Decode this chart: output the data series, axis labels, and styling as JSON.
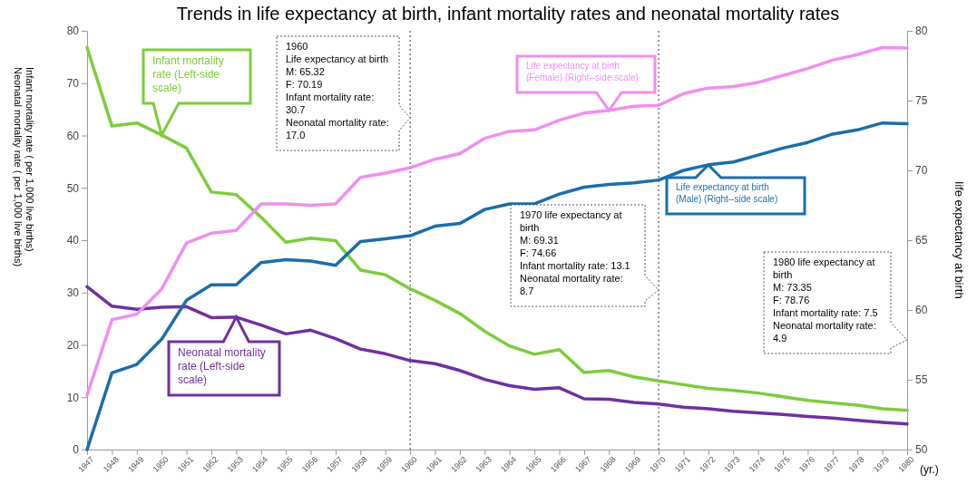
{
  "chart_data": {
    "type": "line",
    "title": "Trends in life expectancy at birth, infant mortality rates and neonatal mortality rates",
    "xlabel": "(yr.)",
    "ylabel": "Infant mortality rate ( per 1,000 live births)\nNeonatal mortality rate ( per 1,000 live births)",
    "y2label": "life expectancy at birth",
    "x": [
      1947,
      1948,
      1949,
      1950,
      1951,
      1952,
      1953,
      1954,
      1955,
      1956,
      1957,
      1958,
      1959,
      1960,
      1961,
      1962,
      1963,
      1964,
      1965,
      1966,
      1967,
      1968,
      1969,
      1970,
      1971,
      1972,
      1973,
      1974,
      1975,
      1976,
      1977,
      1978,
      1979,
      1980
    ],
    "xlim": [
      1947,
      1980
    ],
    "xticks": [
      1947,
      1948,
      1949,
      1950,
      1951,
      1952,
      1953,
      1954,
      1955,
      1956,
      1957,
      1958,
      1959,
      1960,
      1961,
      1962,
      1963,
      1964,
      1965,
      1966,
      1967,
      1968,
      1969,
      1970,
      1971,
      1972,
      1973,
      1974,
      1975,
      1976,
      1977,
      1978,
      1979,
      1980
    ],
    "ylim": [
      0,
      80
    ],
    "yticks": [
      0,
      10,
      20,
      30,
      40,
      50,
      60,
      70,
      80
    ],
    "y2lim": [
      50,
      80
    ],
    "y2ticks": [
      50,
      55,
      60,
      65,
      70,
      75,
      80
    ],
    "series": [
      {
        "name": "Infant mortality rate (Left-side scale)",
        "color": "#7dcc3c",
        "values": [
          76.8,
          61.8,
          62.4,
          60.1,
          57.6,
          49.2,
          48.7,
          44.4,
          39.6,
          40.4,
          39.9,
          34.3,
          33.4,
          30.7,
          28.5,
          26.0,
          22.6,
          19.8,
          18.2,
          19.1,
          14.7,
          15.1,
          13.9,
          13.1,
          12.4,
          11.7,
          11.3,
          10.8,
          10.1,
          9.4,
          8.9,
          8.5,
          7.8,
          7.5
        ]
      },
      {
        "name": "Neonatal mortality rate (Left-side scale)",
        "color": "#7030a0",
        "values": [
          31.1,
          27.4,
          26.8,
          27.2,
          27.3,
          25.2,
          25.3,
          23.8,
          22.1,
          22.8,
          21.2,
          19.2,
          18.3,
          17.0,
          16.4,
          15.1,
          13.4,
          12.2,
          11.5,
          11.8,
          9.7,
          9.6,
          9.0,
          8.7,
          8.1,
          7.8,
          7.3,
          7.0,
          6.7,
          6.3,
          6.0,
          5.6,
          5.2,
          4.9
        ]
      },
      {
        "name": "Life expectancy at birth (Female) (Right--side scale)",
        "color": "#f08ef0",
        "axis": "y2",
        "values": [
          53.9,
          59.3,
          59.7,
          61.5,
          64.8,
          65.5,
          65.7,
          67.6,
          67.6,
          67.5,
          67.6,
          69.5,
          69.8,
          70.19,
          70.8,
          71.2,
          72.3,
          72.8,
          72.9,
          73.6,
          74.1,
          74.3,
          74.6,
          74.66,
          75.5,
          75.9,
          76.0,
          76.3,
          76.8,
          77.3,
          77.9,
          78.3,
          78.8,
          78.76
        ]
      },
      {
        "name": "Life expectancy at birth (Male) (Right--side scale)",
        "color": "#1a6eaa",
        "axis": "y2",
        "values": [
          50.0,
          55.5,
          56.1,
          57.9,
          60.7,
          61.8,
          61.8,
          63.4,
          63.6,
          63.5,
          63.2,
          64.9,
          65.1,
          65.32,
          66.0,
          66.2,
          67.2,
          67.6,
          67.6,
          68.3,
          68.8,
          69.0,
          69.1,
          69.31,
          70.0,
          70.4,
          70.6,
          71.1,
          71.6,
          72.0,
          72.6,
          72.9,
          73.4,
          73.35
        ]
      }
    ],
    "ref_lines": [
      {
        "axis": "x",
        "value": 1960,
        "line_style": "dotted"
      },
      {
        "axis": "x",
        "value": 1970,
        "line_style": "dotted"
      }
    ],
    "annotations": [
      {
        "text": "1960\nLife expectancy at birth\nM: 65.32\nF: 70.19\nInfant mortality rate: 30.7\nNeonatal mortality rate: 17.0",
        "x": 1960
      },
      {
        "text": "1970 life expectancy at birth\nM: 69.31\nF: 74.66\nInfant mortality rate: 13.1\nNeonatal mortality rate: 8.7",
        "x": 1970
      },
      "1980 life expectancy at birth\nM: 73.35\nF: 78.76\nInfant mortality rate: 7.5\nNeonatal mortality rate: 4.9"
    ],
    "legend": false,
    "grid": false,
    "marker": "none",
    "line_style": "solid"
  }
}
